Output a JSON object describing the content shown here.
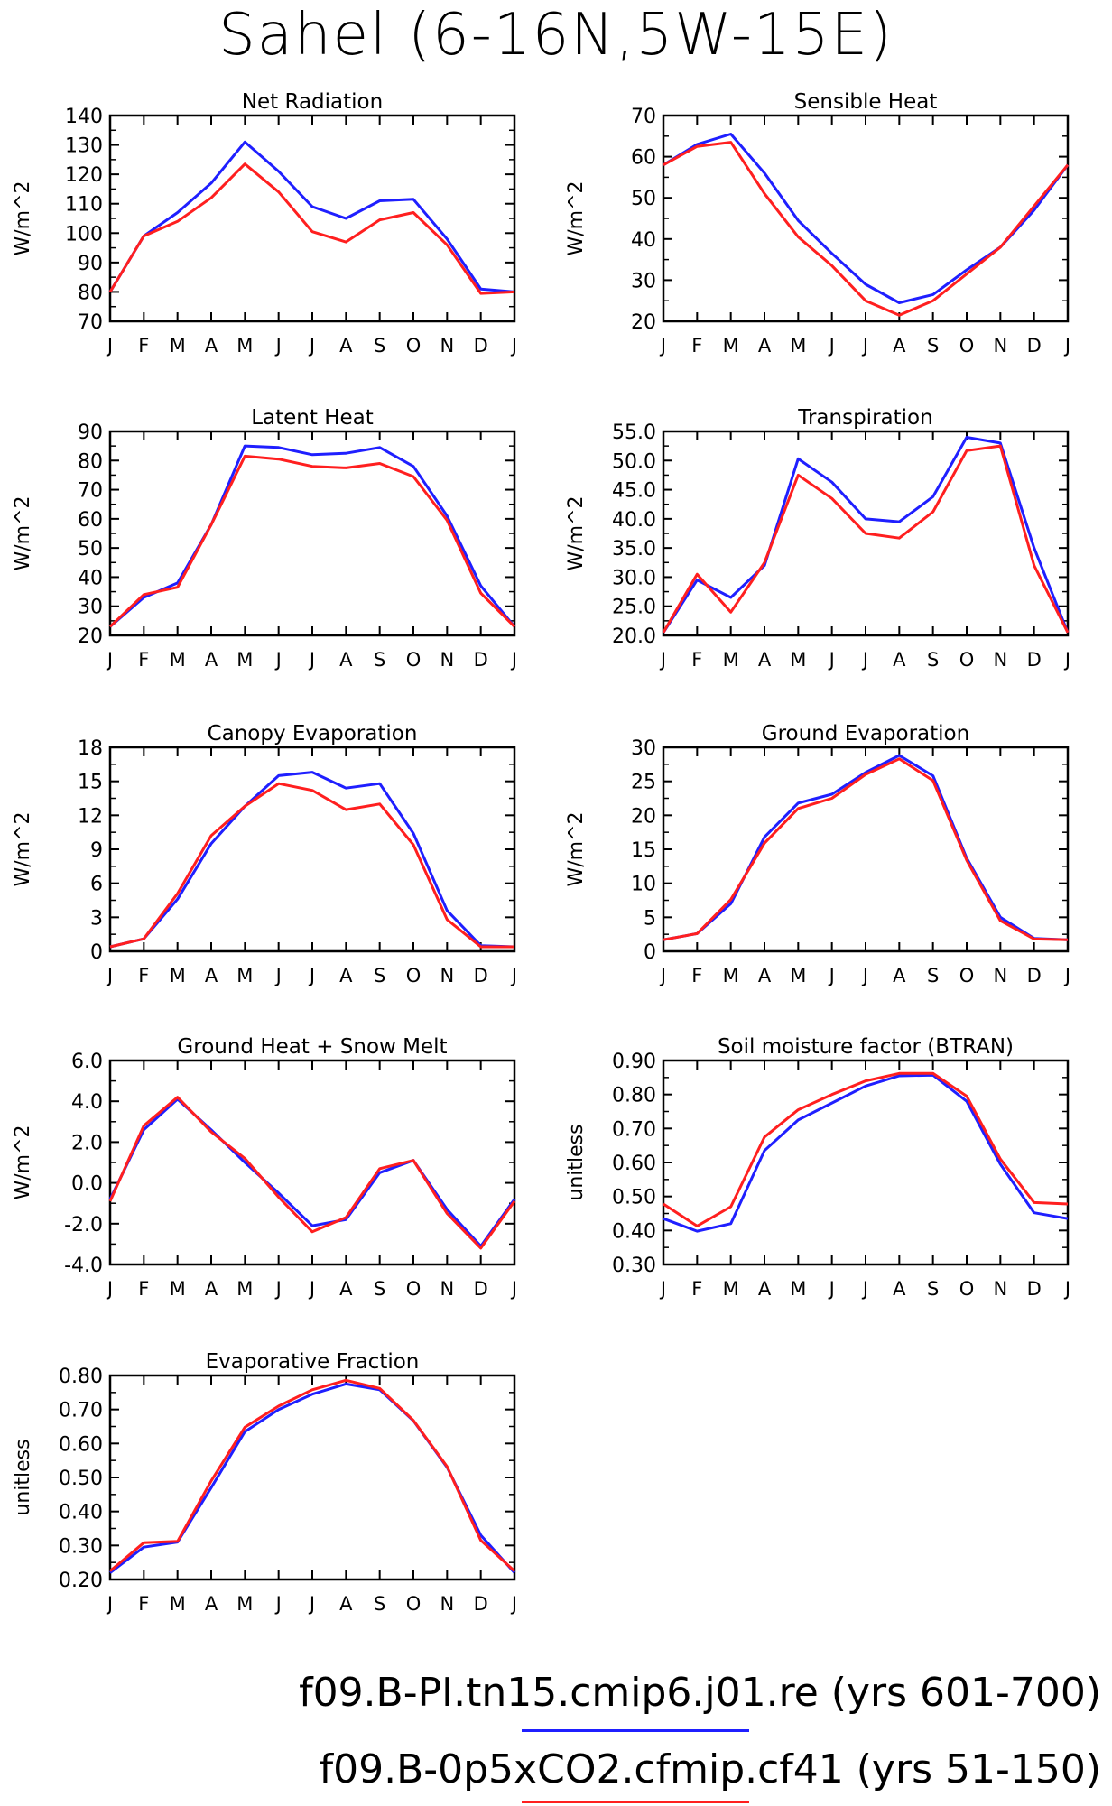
{
  "title": "Sahel (6-16N,5W-15E)",
  "months": [
    "J",
    "F",
    "M",
    "A",
    "M",
    "J",
    "J",
    "A",
    "S",
    "O",
    "N",
    "D",
    "J"
  ],
  "colors": {
    "series_blue": "#1f1fff",
    "series_red": "#ff1f1f",
    "axis": "#000000"
  },
  "legend": [
    {
      "label": "f09.B-PI.tn15.cmip6.j01.re (yrs 601-700)",
      "color": "#1f1fff"
    },
    {
      "label": "f09.B-0p5xCO2.cfmip.cf41 (yrs 51-150)",
      "color": "#ff1f1f"
    }
  ],
  "chart_data": [
    {
      "type": "line",
      "title": "Net Radiation",
      "ylabel": "W/m^2",
      "ylim": [
        70,
        140
      ],
      "yticks": [
        70,
        80,
        90,
        100,
        110,
        120,
        130,
        140
      ],
      "ytick_labels": [
        "70",
        "80",
        "90",
        "100",
        "110",
        "120",
        "130",
        "140"
      ],
      "categories": [
        "J",
        "F",
        "M",
        "A",
        "M",
        "J",
        "J",
        "A",
        "S",
        "O",
        "N",
        "D",
        "J"
      ],
      "series": [
        {
          "color": "blue",
          "values": [
            80,
            99,
            107,
            117,
            131,
            121,
            109,
            105,
            111,
            111.5,
            98,
            81,
            80
          ]
        },
        {
          "color": "red",
          "values": [
            80,
            99,
            104,
            112,
            123.5,
            114,
            100.5,
            97,
            104.5,
            107,
            96,
            79.5,
            80
          ]
        }
      ]
    },
    {
      "type": "line",
      "title": "Sensible Heat",
      "ylabel": "W/m^2",
      "ylim": [
        20,
        70
      ],
      "yticks": [
        20,
        30,
        40,
        50,
        60,
        70
      ],
      "ytick_labels": [
        "20",
        "30",
        "40",
        "50",
        "60",
        "70"
      ],
      "categories": [
        "J",
        "F",
        "M",
        "A",
        "M",
        "J",
        "J",
        "A",
        "S",
        "O",
        "N",
        "D",
        "J"
      ],
      "series": [
        {
          "color": "blue",
          "values": [
            58,
            63,
            65.5,
            56,
            44.5,
            36.5,
            29,
            24.5,
            26.5,
            32.5,
            38,
            47,
            58
          ]
        },
        {
          "color": "red",
          "values": [
            58,
            62.5,
            63.5,
            51,
            40.5,
            33.5,
            25,
            21.5,
            25,
            31.5,
            38,
            48,
            58
          ]
        }
      ]
    },
    {
      "type": "line",
      "title": "Latent Heat",
      "ylabel": "W/m^2",
      "ylim": [
        20,
        90
      ],
      "yticks": [
        20,
        30,
        40,
        50,
        60,
        70,
        80,
        90
      ],
      "ytick_labels": [
        "20",
        "30",
        "40",
        "50",
        "60",
        "70",
        "80",
        "90"
      ],
      "categories": [
        "J",
        "F",
        "M",
        "A",
        "M",
        "J",
        "J",
        "A",
        "S",
        "O",
        "N",
        "D",
        "J"
      ],
      "series": [
        {
          "color": "blue",
          "values": [
            23,
            33,
            38,
            58,
            85,
            84.5,
            82,
            82.5,
            84.5,
            78,
            61,
            37,
            23
          ]
        },
        {
          "color": "red",
          "values": [
            23,
            34,
            36.5,
            58,
            81.5,
            80.5,
            78,
            77.5,
            79,
            74.5,
            59.5,
            34.5,
            23
          ]
        }
      ]
    },
    {
      "type": "line",
      "title": "Transpiration",
      "ylabel": "W/m^2",
      "ylim": [
        20,
        55
      ],
      "yticks": [
        20,
        25,
        30,
        35,
        40,
        45,
        50,
        55
      ],
      "ytick_labels": [
        "20.0",
        "25.0",
        "30.0",
        "35.0",
        "40.0",
        "45.0",
        "50.0",
        "55.0"
      ],
      "categories": [
        "J",
        "F",
        "M",
        "A",
        "M",
        "J",
        "J",
        "A",
        "S",
        "O",
        "N",
        "D",
        "J"
      ],
      "series": [
        {
          "color": "blue",
          "values": [
            20.5,
            29.5,
            26.5,
            32,
            50.3,
            46.3,
            40,
            39.5,
            43.8,
            54,
            53,
            35,
            20.5
          ]
        },
        {
          "color": "red",
          "values": [
            20.5,
            30.5,
            24,
            32.5,
            47.5,
            43.5,
            37.5,
            36.7,
            41.2,
            51.7,
            52.5,
            32,
            20.5
          ]
        }
      ]
    },
    {
      "type": "line",
      "title": "Canopy Evaporation",
      "ylabel": "W/m^2",
      "ylim": [
        0,
        18
      ],
      "yticks": [
        0,
        3,
        6,
        9,
        12,
        15,
        18
      ],
      "ytick_labels": [
        "0",
        "3",
        "6",
        "9",
        "12",
        "15",
        "18"
      ],
      "categories": [
        "J",
        "F",
        "M",
        "A",
        "M",
        "J",
        "J",
        "A",
        "S",
        "O",
        "N",
        "D",
        "J"
      ],
      "series": [
        {
          "color": "blue",
          "values": [
            0.4,
            1.1,
            4.6,
            9.5,
            12.8,
            15.5,
            15.8,
            14.4,
            14.8,
            10.4,
            3.6,
            0.5,
            0.4
          ]
        },
        {
          "color": "red",
          "values": [
            0.4,
            1.1,
            5.1,
            10.2,
            12.8,
            14.8,
            14.2,
            12.5,
            13,
            9.4,
            2.8,
            0.4,
            0.4
          ]
        }
      ]
    },
    {
      "type": "line",
      "title": "Ground Evaporation",
      "ylabel": "W/m^2",
      "ylim": [
        0,
        30
      ],
      "yticks": [
        0,
        5,
        10,
        15,
        20,
        25,
        30
      ],
      "ytick_labels": [
        "0",
        "5",
        "10",
        "15",
        "20",
        "25",
        "30"
      ],
      "categories": [
        "J",
        "F",
        "M",
        "A",
        "M",
        "J",
        "J",
        "A",
        "S",
        "O",
        "N",
        "D",
        "J"
      ],
      "series": [
        {
          "color": "blue",
          "values": [
            1.7,
            2.6,
            7,
            16.8,
            21.8,
            23.1,
            26.3,
            28.8,
            25.8,
            13.7,
            5,
            1.9,
            1.7
          ]
        },
        {
          "color": "red",
          "values": [
            1.7,
            2.6,
            7.6,
            15.9,
            21,
            22.5,
            26,
            28.3,
            25.1,
            13.4,
            4.5,
            1.8,
            1.7
          ]
        }
      ]
    },
    {
      "type": "line",
      "title": "Ground Heat + Snow Melt",
      "ylabel": "W/m^2",
      "ylim": [
        -4,
        6
      ],
      "yticks": [
        -4,
        -2,
        0,
        2,
        4,
        6
      ],
      "ytick_labels": [
        "-4.0",
        "-2.0",
        "0.0",
        "2.0",
        "4.0",
        "6.0"
      ],
      "categories": [
        "J",
        "F",
        "M",
        "A",
        "M",
        "J",
        "J",
        "A",
        "S",
        "O",
        "N",
        "D",
        "J"
      ],
      "series": [
        {
          "color": "blue",
          "values": [
            -0.8,
            2.6,
            4.1,
            2.6,
            1,
            -0.5,
            -2.1,
            -1.8,
            0.5,
            1.1,
            -1.3,
            -3.1,
            -0.8
          ]
        },
        {
          "color": "red",
          "values": [
            -0.9,
            2.8,
            4.2,
            2.5,
            1.2,
            -0.7,
            -2.4,
            -1.7,
            0.7,
            1.1,
            -1.5,
            -3.2,
            -0.9
          ]
        }
      ]
    },
    {
      "type": "line",
      "title": "Soil moisture factor (BTRAN)",
      "ylabel": "unitless",
      "ylim": [
        0.3,
        0.9
      ],
      "yticks": [
        0.3,
        0.4,
        0.5,
        0.6,
        0.7,
        0.8,
        0.9
      ],
      "ytick_labels": [
        "0.30",
        "0.40",
        "0.50",
        "0.60",
        "0.70",
        "0.80",
        "0.90"
      ],
      "categories": [
        "J",
        "F",
        "M",
        "A",
        "M",
        "J",
        "J",
        "A",
        "S",
        "O",
        "N",
        "D",
        "J"
      ],
      "series": [
        {
          "color": "blue",
          "values": [
            0.435,
            0.398,
            0.42,
            0.635,
            0.725,
            0.775,
            0.825,
            0.855,
            0.857,
            0.78,
            0.595,
            0.452,
            0.435
          ]
        },
        {
          "color": "red",
          "values": [
            0.478,
            0.413,
            0.47,
            0.675,
            0.755,
            0.8,
            0.84,
            0.862,
            0.862,
            0.795,
            0.61,
            0.482,
            0.478
          ]
        }
      ]
    },
    {
      "type": "line",
      "title": "Evaporative Fraction",
      "ylabel": "unitless",
      "ylim": [
        0.2,
        0.8
      ],
      "yticks": [
        0.2,
        0.3,
        0.4,
        0.5,
        0.6,
        0.7,
        0.8
      ],
      "ytick_labels": [
        "0.20",
        "0.30",
        "0.40",
        "0.50",
        "0.60",
        "0.70",
        "0.80"
      ],
      "categories": [
        "J",
        "F",
        "M",
        "A",
        "M",
        "J",
        "J",
        "A",
        "S",
        "O",
        "N",
        "D",
        "J"
      ],
      "series": [
        {
          "color": "blue",
          "values": [
            0.22,
            0.295,
            0.31,
            0.47,
            0.635,
            0.7,
            0.745,
            0.775,
            0.758,
            0.667,
            0.53,
            0.33,
            0.22
          ]
        },
        {
          "color": "red",
          "values": [
            0.225,
            0.308,
            0.312,
            0.49,
            0.648,
            0.71,
            0.758,
            0.786,
            0.762,
            0.668,
            0.532,
            0.315,
            0.225
          ]
        }
      ]
    }
  ]
}
